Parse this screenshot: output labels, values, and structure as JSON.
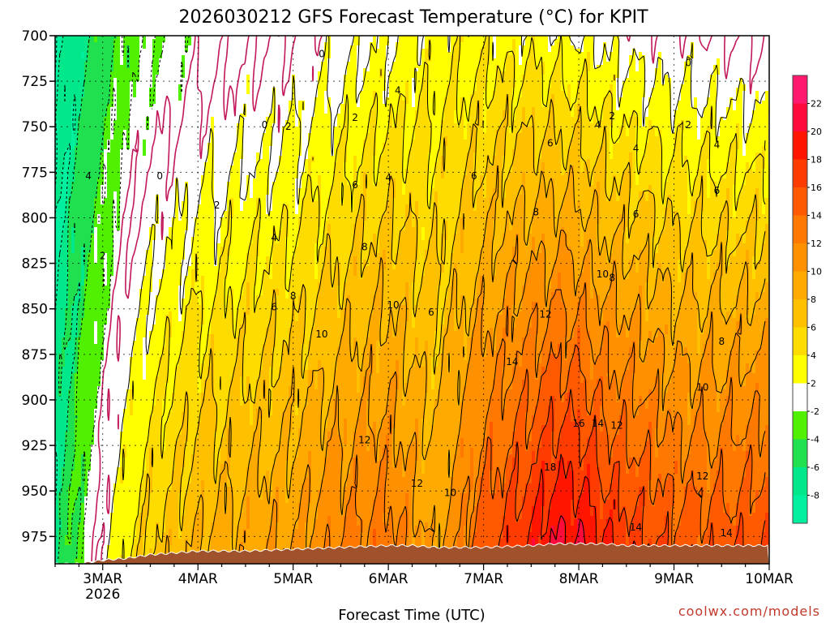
{
  "chart_data": {
    "type": "heatmap",
    "title": "2026030212 GFS Forecast Temperature (°C) for KPIT",
    "xlabel": "Forecast Time (UTC)",
    "ylabel": "",
    "credit": "coolwx.com/models",
    "y_axis": {
      "unit": "hPa",
      "range": [
        700,
        990
      ],
      "inverted": true,
      "ticks": [
        "700",
        "725",
        "750",
        "775",
        "800",
        "825",
        "850",
        "875",
        "900",
        "925",
        "950",
        "975"
      ]
    },
    "x_axis": {
      "range_days": [
        2.5,
        10.0
      ],
      "ticks": [
        {
          "day": 3,
          "label": "3MAR",
          "sublabel": "2026"
        },
        {
          "day": 4,
          "label": "4MAR",
          "sublabel": ""
        },
        {
          "day": 5,
          "label": "5MAR",
          "sublabel": ""
        },
        {
          "day": 6,
          "label": "6MAR",
          "sublabel": ""
        },
        {
          "day": 7,
          "label": "7MAR",
          "sublabel": ""
        },
        {
          "day": 8,
          "label": "8MAR",
          "sublabel": ""
        },
        {
          "day": 9,
          "label": "9MAR",
          "sublabel": ""
        },
        {
          "day": 10,
          "label": "10MAR",
          "sublabel": ""
        }
      ]
    },
    "colorbar": {
      "levels": [
        "22",
        "20",
        "18",
        "16",
        "14",
        "12",
        "10",
        "8",
        "6",
        "4",
        "2",
        "-2",
        "-4",
        "-6",
        "-8"
      ],
      "bins": [
        {
          "min": 22,
          "max": 24,
          "color": "#ff1a70"
        },
        {
          "min": 20,
          "max": 22,
          "color": "#ff0a3c"
        },
        {
          "min": 18,
          "max": 20,
          "color": "#ff1500"
        },
        {
          "min": 16,
          "max": 18,
          "color": "#ff3c00"
        },
        {
          "min": 14,
          "max": 16,
          "color": "#ff5a00"
        },
        {
          "min": 12,
          "max": 14,
          "color": "#ff7800"
        },
        {
          "min": 10,
          "max": 12,
          "color": "#ff9000"
        },
        {
          "min": 8,
          "max": 10,
          "color": "#ffaa00"
        },
        {
          "min": 6,
          "max": 8,
          "color": "#ffc000"
        },
        {
          "min": 4,
          "max": 6,
          "color": "#ffdc00"
        },
        {
          "min": 2,
          "max": 4,
          "color": "#ffff00"
        },
        {
          "min": -2,
          "max": 2,
          "color": "#ffffff"
        },
        {
          "min": -4,
          "max": -2,
          "color": "#50f000"
        },
        {
          "min": -6,
          "max": -4,
          "color": "#20e050"
        },
        {
          "min": -8,
          "max": -6,
          "color": "#00e88a"
        },
        {
          "min": -10,
          "max": -8,
          "color": "#00f0a0"
        }
      ]
    },
    "terrain_color": "#a0522d",
    "series": [
      {
        "name": "temperature_profile",
        "unit": "°C",
        "days": [
          2.5,
          2.75,
          3.0,
          3.25,
          3.5,
          3.75,
          4.0,
          4.5,
          5.0,
          5.5,
          6.0,
          6.25,
          6.5,
          6.75,
          7.0,
          7.5,
          7.75,
          8.0,
          8.25,
          8.5,
          9.0,
          9.5,
          10.0
        ],
        "surface_pressure": [
          990,
          990,
          988,
          987,
          985,
          984,
          983,
          983,
          982,
          981,
          980,
          980,
          981,
          981,
          981,
          980,
          979,
          979,
          979,
          980,
          980,
          980,
          980
        ],
        "temp_700": [
          -9,
          -7,
          -5,
          -3,
          -2,
          -1.5,
          -1,
          -0.5,
          0,
          1,
          2,
          2.5,
          3,
          3,
          3,
          3,
          2.5,
          2,
          1.5,
          1,
          0.5,
          0,
          -0.5
        ],
        "temp_975": [
          -7,
          -3,
          1,
          4,
          6,
          7,
          8,
          9,
          10,
          12,
          13,
          11,
          9,
          12,
          15,
          18,
          20,
          20,
          18,
          17,
          15,
          15,
          16
        ]
      }
    ],
    "contour_labels": [
      {
        "text": "0",
        "day": 5.3,
        "p": 710
      },
      {
        "text": "0",
        "day": 4.7,
        "p": 749
      },
      {
        "text": "0",
        "day": 3.6,
        "p": 777
      },
      {
        "text": "0",
        "day": 9.15,
        "p": 715
      },
      {
        "text": "2",
        "day": 5.65,
        "p": 745
      },
      {
        "text": "2",
        "day": 4.95,
        "p": 750
      },
      {
        "text": "2",
        "day": 4.2,
        "p": 793
      },
      {
        "text": "2",
        "day": 3.0,
        "p": 821
      },
      {
        "text": "2",
        "day": 8.35,
        "p": 744
      },
      {
        "text": "2",
        "day": 9.15,
        "p": 749
      },
      {
        "text": "4",
        "day": 6.1,
        "p": 730
      },
      {
        "text": "4",
        "day": 6.0,
        "p": 778
      },
      {
        "text": "4",
        "day": 4.8,
        "p": 811
      },
      {
        "text": "4",
        "day": 2.85,
        "p": 777
      },
      {
        "text": "4",
        "day": 8.2,
        "p": 749
      },
      {
        "text": "4",
        "day": 8.6,
        "p": 762
      },
      {
        "text": "4",
        "day": 9.45,
        "p": 760
      },
      {
        "text": "6",
        "day": 5.65,
        "p": 782
      },
      {
        "text": "6",
        "day": 4.8,
        "p": 849
      },
      {
        "text": "6",
        "day": 6.45,
        "p": 852
      },
      {
        "text": "6",
        "day": 6.9,
        "p": 777
      },
      {
        "text": "6",
        "day": 7.7,
        "p": 759
      },
      {
        "text": "6",
        "day": 8.6,
        "p": 798
      },
      {
        "text": "6",
        "day": 9.45,
        "p": 785
      },
      {
        "text": "8",
        "day": 5.75,
        "p": 816
      },
      {
        "text": "8",
        "day": 5.0,
        "p": 843
      },
      {
        "text": "8",
        "day": 7.55,
        "p": 797
      },
      {
        "text": "8",
        "day": 8.35,
        "p": 833
      },
      {
        "text": "8",
        "day": 9.5,
        "p": 868
      },
      {
        "text": "10",
        "day": 6.05,
        "p": 848
      },
      {
        "text": "10",
        "day": 5.3,
        "p": 864
      },
      {
        "text": "10",
        "day": 6.65,
        "p": 951
      },
      {
        "text": "10",
        "day": 8.25,
        "p": 831
      },
      {
        "text": "10",
        "day": 9.3,
        "p": 893
      },
      {
        "text": "12",
        "day": 5.75,
        "p": 922
      },
      {
        "text": "12",
        "day": 6.3,
        "p": 946
      },
      {
        "text": "12",
        "day": 7.65,
        "p": 853
      },
      {
        "text": "12",
        "day": 8.4,
        "p": 914
      },
      {
        "text": "12",
        "day": 9.3,
        "p": 942
      },
      {
        "text": "14",
        "day": 7.3,
        "p": 879
      },
      {
        "text": "14",
        "day": 8.2,
        "p": 913
      },
      {
        "text": "14",
        "day": 8.6,
        "p": 970
      },
      {
        "text": "14",
        "day": 9.55,
        "p": 973
      },
      {
        "text": "16",
        "day": 8.0,
        "p": 913
      },
      {
        "text": "18",
        "day": 7.7,
        "p": 937
      }
    ]
  }
}
